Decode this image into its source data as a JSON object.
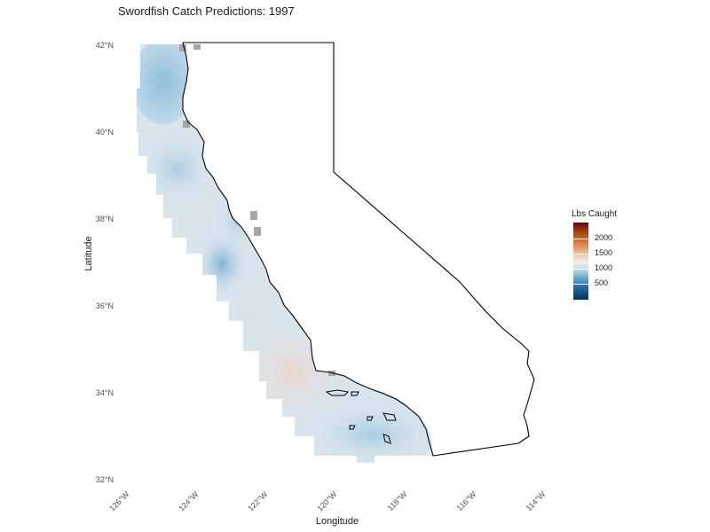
{
  "title": "Swordfish Catch Predictions: 1997",
  "x_axis": {
    "label": "Longitude",
    "ticks": [
      "126°W",
      "124°W",
      "122°W",
      "120°W",
      "118°W",
      "116°W",
      "114°W"
    ]
  },
  "y_axis": {
    "label": "Latitude",
    "ticks": [
      "42°N",
      "40°N",
      "38°N",
      "36°N",
      "34°N",
      "32°N"
    ]
  },
  "legend": {
    "title": "Lbs Caught",
    "labels": [
      "2000",
      "1500",
      "1000",
      "500"
    ]
  },
  "colors": {
    "high": "#67001f",
    "mid": "#eeeeee",
    "low": "#053061",
    "missing": "#a6a6a6",
    "outline": "#000000"
  },
  "chart_data": {
    "type": "heatmap",
    "title": "Swordfish Catch Predictions: 1997",
    "xlabel": "Longitude",
    "ylabel": "Latitude",
    "xlim": [
      -126,
      -114
    ],
    "ylim": [
      32,
      42
    ],
    "value_label": "Lbs Caught",
    "color_scale": "RdBu (reversed): low = blue, high = red",
    "color_range": [
      200,
      2300
    ],
    "region": "California coastal waters",
    "grid": false
  }
}
